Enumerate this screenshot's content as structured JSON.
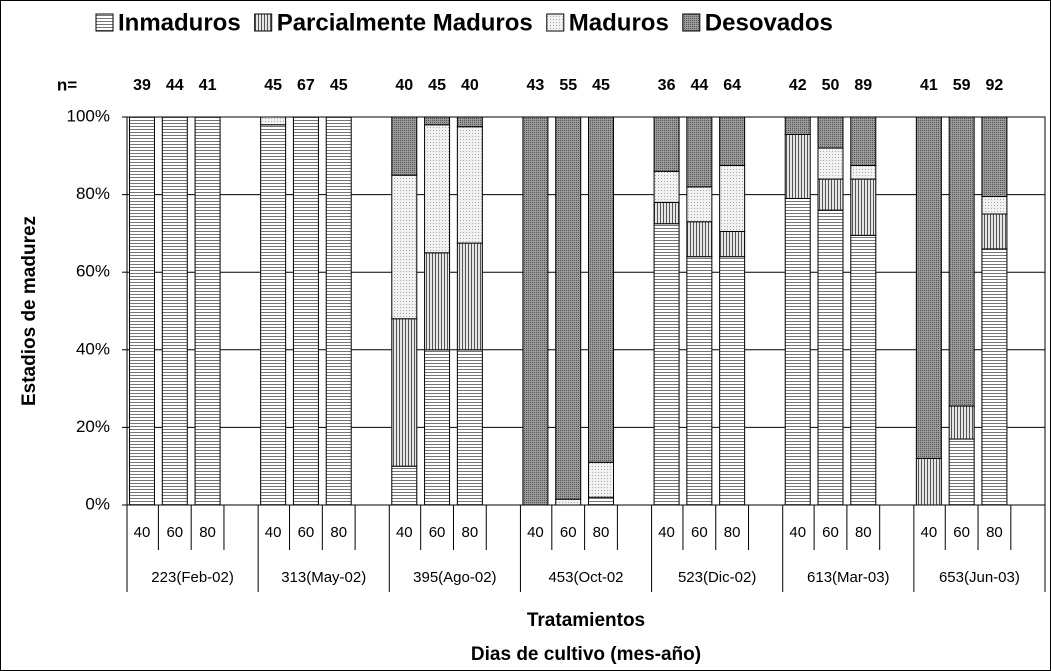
{
  "chart_data": {
    "type": "stacked_bar",
    "ylabel": "Estadios de madurez",
    "xlabel": [
      "Tratamientos",
      "Dias de cultivo (mes-año)"
    ],
    "n_label": "n=",
    "n_values": [
      39,
      44,
      41,
      45,
      67,
      45,
      40,
      45,
      40,
      43,
      55,
      45,
      36,
      44,
      64,
      42,
      50,
      89,
      41,
      59,
      92
    ],
    "categories": [
      "40",
      "60",
      "80",
      "40",
      "60",
      "80",
      "40",
      "60",
      "80",
      "40",
      "60",
      "80",
      "40",
      "60",
      "80",
      "40",
      "60",
      "80",
      "40",
      "60",
      "80"
    ],
    "group_labels": [
      "223(Feb-02)",
      "313(May-02)",
      "395(Ago-02)",
      "453(Oct-02",
      "523(Dic-02)",
      "613(Mar-03)",
      "653(Jun-03)"
    ],
    "series": [
      {
        "name": "Inmaduros",
        "color": "#ffffff",
        "pattern": "hlines",
        "values": [
          100,
          100,
          100,
          98,
          100,
          100,
          10,
          40,
          40,
          0,
          0,
          2,
          72.5,
          64,
          64,
          79,
          76,
          69.5,
          0,
          17,
          66
        ]
      },
      {
        "name": "Parcialmente Maduros",
        "color": "#cfcfcf",
        "pattern": "vlines",
        "values": [
          0,
          0,
          0,
          0,
          0,
          0,
          38,
          25,
          27.5,
          0,
          0,
          0,
          5.5,
          9,
          6.5,
          16.5,
          8,
          14.5,
          12,
          8.5,
          9
        ]
      },
      {
        "name": "Maduros",
        "color": "#eeeeee",
        "pattern": "dots",
        "values": [
          0,
          0,
          0,
          2,
          0,
          0,
          37,
          33,
          30,
          0,
          1.5,
          9,
          8,
          9,
          17,
          0,
          8,
          3.5,
          0,
          0,
          4.5
        ]
      },
      {
        "name": "Desovados",
        "color": "#8c8c8c",
        "pattern": "dots",
        "values": [
          0,
          0,
          0,
          0,
          0,
          0,
          15,
          2,
          2.5,
          100,
          98.5,
          89,
          14,
          18,
          12.5,
          4.5,
          8,
          12.5,
          88,
          74.5,
          20.5
        ]
      }
    ],
    "ylim": [
      0,
      100
    ],
    "yticks": [
      {
        "value": 0,
        "label": "0%"
      },
      {
        "value": 20,
        "label": "20%"
      },
      {
        "value": 40,
        "label": "40%"
      },
      {
        "value": 60,
        "label": "60%"
      },
      {
        "value": 80,
        "label": "80%"
      },
      {
        "value": 100,
        "label": "100%"
      }
    ],
    "grid": true
  }
}
